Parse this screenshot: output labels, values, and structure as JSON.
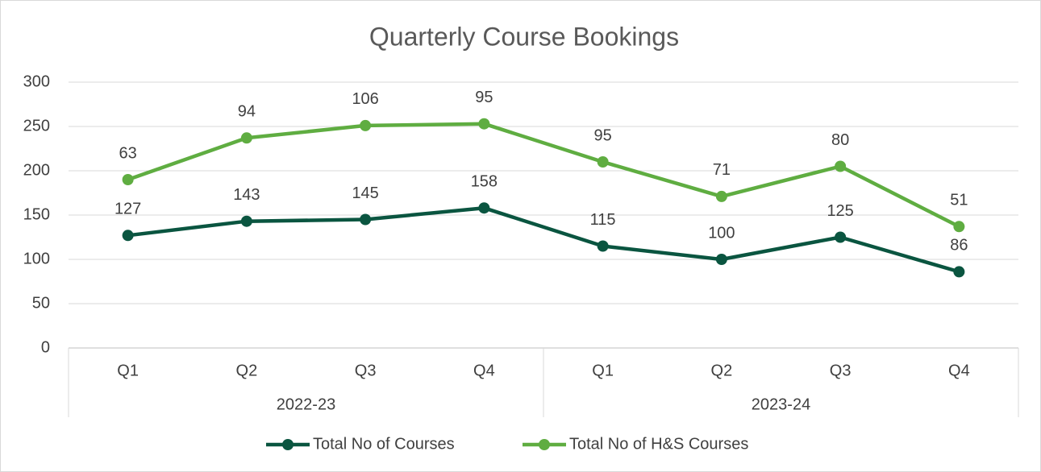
{
  "chart_data": {
    "type": "line",
    "stacked": true,
    "title": "Quarterly Course Bookings",
    "categories": [
      "Q1",
      "Q2",
      "Q3",
      "Q4",
      "Q1",
      "Q2",
      "Q3",
      "Q4"
    ],
    "category_groups": [
      "2022-23",
      "2023-24"
    ],
    "series": [
      {
        "name": "Total No of Courses",
        "color": "#0a5540",
        "values": [
          127,
          143,
          145,
          158,
          115,
          100,
          125,
          86
        ]
      },
      {
        "name": "Total No of H&S Courses",
        "color": "#5fad41",
        "values": [
          63,
          94,
          106,
          95,
          95,
          71,
          80,
          51
        ]
      }
    ],
    "ylim": [
      0,
      300
    ],
    "yticks": [
      0,
      50,
      100,
      150,
      200,
      250,
      300
    ],
    "grid": true,
    "legend": "bottom"
  }
}
